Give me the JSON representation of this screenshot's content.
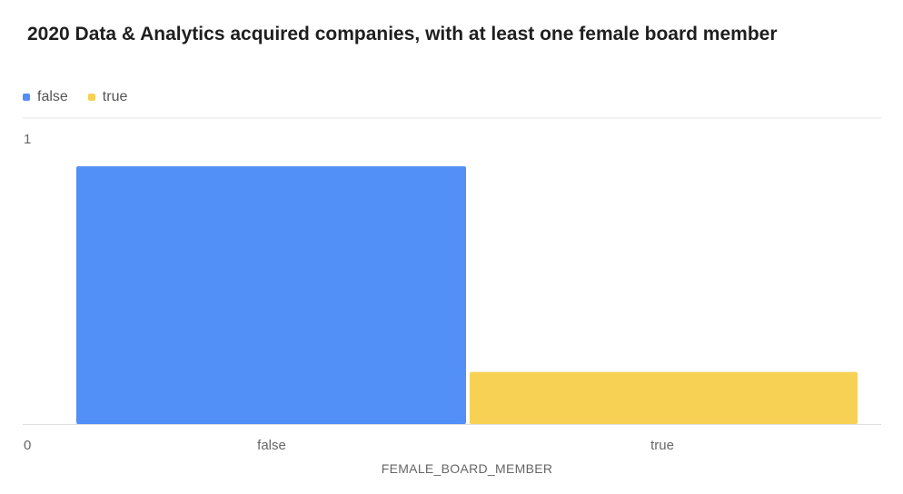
{
  "chart_data": {
    "type": "bar",
    "title": "2020 Data & Analytics acquired companies, with at least one female board member",
    "categories": [
      "false",
      "true"
    ],
    "values": [
      0.89,
      0.18
    ],
    "colors": [
      "#528ff6",
      "#f7d154"
    ],
    "legend": {
      "position": "top-left",
      "entries": [
        "false",
        "true"
      ]
    },
    "xlabel": "FEMALE_BOARD_MEMBER",
    "ylabel": "",
    "ylim": [
      0,
      1
    ],
    "yticks": [
      "0",
      "1"
    ],
    "grid": true
  }
}
